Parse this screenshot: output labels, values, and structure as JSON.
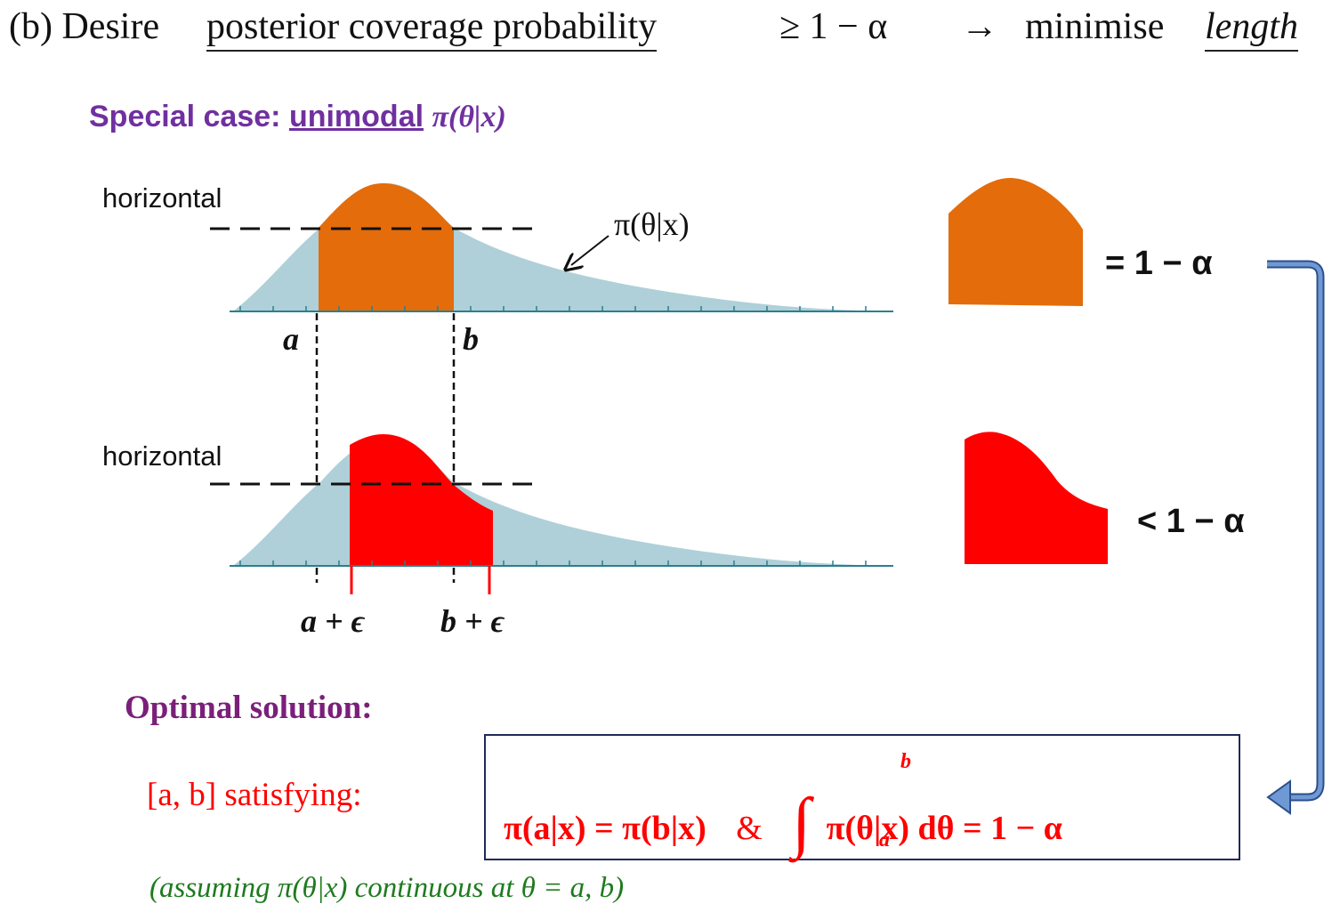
{
  "header": {
    "prefix": "(b) Desire",
    "underlined": "posterior coverage probability",
    "relation": "≥ 1 − α",
    "arrow": "→",
    "action": "minimise",
    "action_underlined": "length"
  },
  "special_case": {
    "prefix": "Special case:",
    "underlined": "unimodal",
    "math": "π(θ|x)"
  },
  "labels": {
    "horizontal_top": "horizontal",
    "horizontal_bottom": "horizontal",
    "curve_label": "π(θ|x)",
    "a": "a",
    "b": "b",
    "a_eps": "a + ϵ",
    "b_eps": "b + ϵ",
    "equals": "= 1 − α",
    "less": "< 1 − α"
  },
  "solution": {
    "title": "Optimal solution:",
    "interval": "[a, b] satisfying:",
    "eq_left": "π(a|x) = π(b|x)",
    "amp": "&",
    "int_upper": "b",
    "int_lower": "a",
    "eq_right": "π(θ|x) dθ = 1 − α",
    "assumption": "(assuming π(θ|x)  continuous at θ = a, b)"
  },
  "colors": {
    "distribution": "#afd0d8",
    "interval_top": "#e46c0a",
    "interval_bottom": "#ff0000",
    "axis": "#2a7f8f",
    "purple": "#7030a0",
    "arrow": "#4f7fbf",
    "green": "#1e7b1e",
    "box_border": "#1f2a5a"
  }
}
